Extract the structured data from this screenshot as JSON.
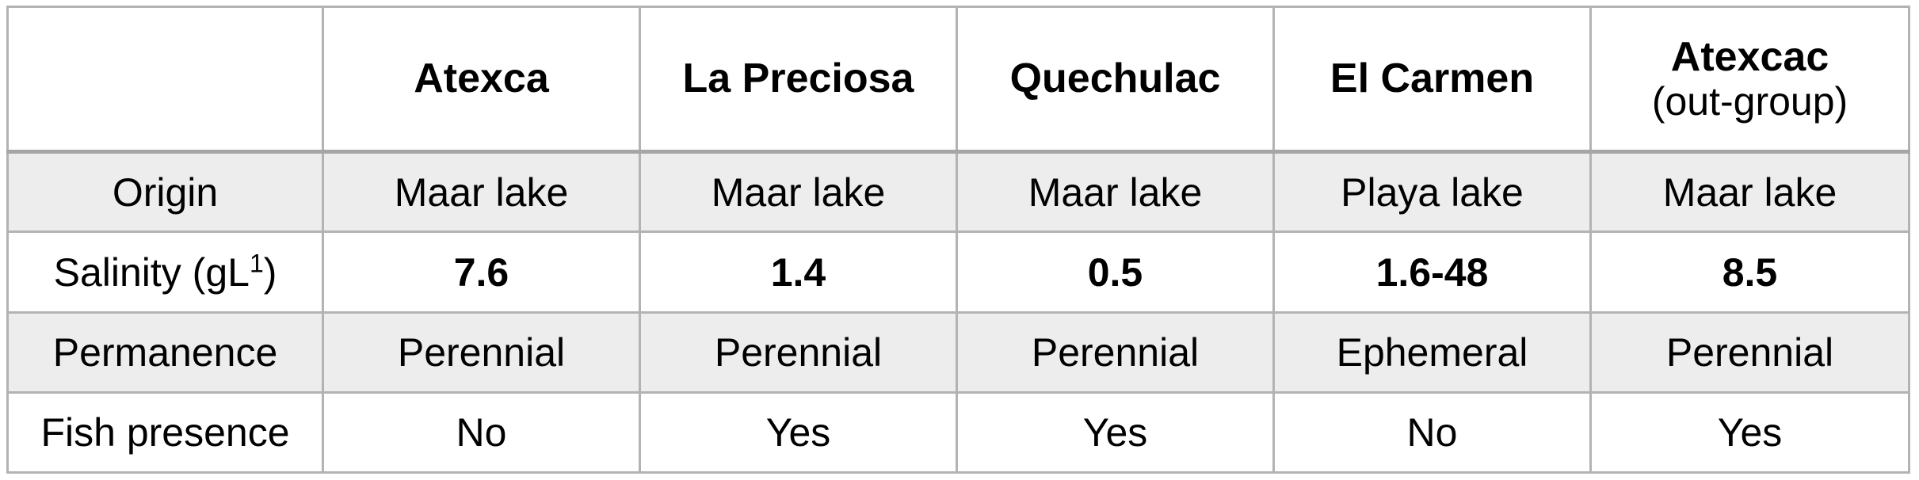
{
  "table": {
    "columns": [
      {
        "name": "Atexca",
        "sub": ""
      },
      {
        "name": "La Preciosa",
        "sub": ""
      },
      {
        "name": "Quechulac",
        "sub": ""
      },
      {
        "name": "El Carmen",
        "sub": ""
      },
      {
        "name": "Atexcac",
        "sub": "(out-group)"
      }
    ],
    "rows": [
      {
        "label": "Origin",
        "values": [
          "Maar lake",
          "Maar lake",
          "Maar lake",
          "Playa lake",
          "Maar lake"
        ]
      },
      {
        "label": "Salinity (gL",
        "label_sup": "1",
        "label_tail": ")",
        "values": [
          "7.6",
          "1.4",
          "0.5",
          "1.6-48",
          "8.5"
        ]
      },
      {
        "label": "Permanence",
        "values": [
          "Perennial",
          "Perennial",
          "Perennial",
          "Ephemeral",
          "Perennial"
        ]
      },
      {
        "label": "Fish presence",
        "values": [
          "No",
          "Yes",
          "Yes",
          "No",
          "Yes"
        ]
      }
    ]
  }
}
